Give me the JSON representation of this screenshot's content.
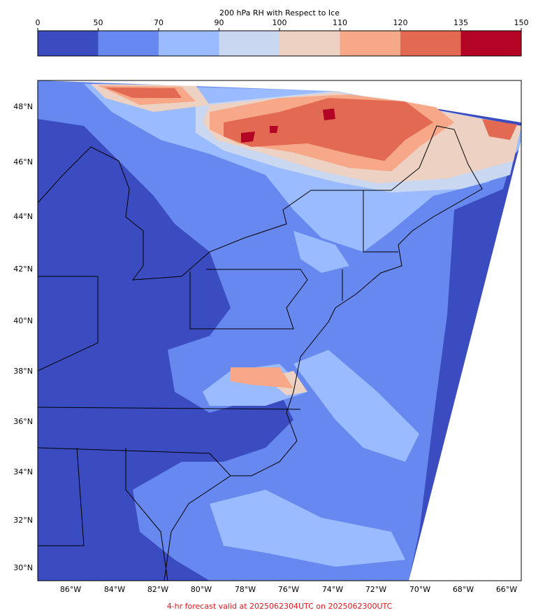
{
  "colorbar": {
    "title": "200 hPa RH with Respect to Ice",
    "ticks": [
      0,
      50,
      70,
      90,
      100,
      110,
      120,
      135,
      150
    ],
    "colors": [
      "#3b4cc0",
      "#6788ee",
      "#9abbff",
      "#c9d7f0",
      "#edd1c2",
      "#f7a889",
      "#e26952",
      "#b40426"
    ]
  },
  "lat_labels": [
    "48°N",
    "46°N",
    "44°N",
    "42°N",
    "40°N",
    "38°N",
    "36°N",
    "34°N",
    "32°N",
    "30°N"
  ],
  "lon_labels": [
    "86°W",
    "84°W",
    "82°W",
    "80°W",
    "78°W",
    "76°W",
    "74°W",
    "72°W",
    "70°W",
    "68°W",
    "66°W"
  ],
  "footer": "4-hr forecast valid at 2025062304UTC on 2025062300UTC"
}
